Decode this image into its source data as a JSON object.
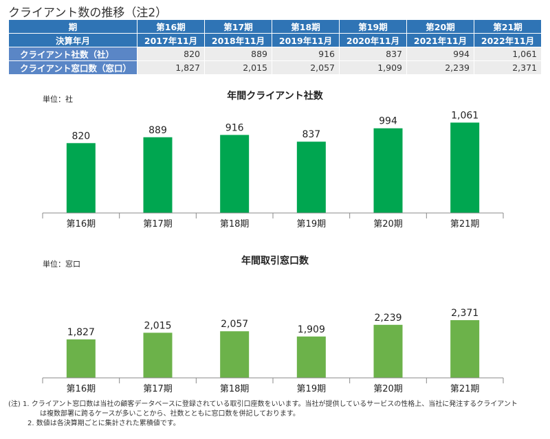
{
  "title": "クライアント数の推移（注2）",
  "table": {
    "header1": [
      "期",
      "第16期",
      "第17期",
      "第18期",
      "第19期",
      "第20期",
      "第21期"
    ],
    "header2": [
      "決算年月",
      "2017年11月",
      "2018年11月",
      "2019年11月",
      "2020年11月",
      "2021年11月",
      "2022年11月"
    ],
    "rows": [
      {
        "label": "クライアント社数（社）",
        "values": [
          "820",
          "889",
          "916",
          "837",
          "994",
          "1,061"
        ]
      },
      {
        "label": "クライアント窓口数（窓口）",
        "values": [
          "1,827",
          "2,015",
          "2,057",
          "1,909",
          "2,239",
          "2,371"
        ]
      }
    ]
  },
  "chart_data": [
    {
      "type": "bar",
      "title": "年間クライアント社数",
      "unit": "単位：社",
      "categories": [
        "第16期",
        "第17期",
        "第18期",
        "第19期",
        "第20期",
        "第21期"
      ],
      "values": [
        820,
        889,
        916,
        837,
        994,
        1061
      ],
      "labels": [
        "820",
        "889",
        "916",
        "837",
        "994",
        "1,061"
      ],
      "ylim": [
        0,
        1250
      ],
      "color": "#00a650",
      "grid": false
    },
    {
      "type": "bar",
      "title": "年間取引窓口数",
      "unit": "単位：窓口",
      "categories": [
        "第16期",
        "第17期",
        "第18期",
        "第19期",
        "第20期",
        "第21期"
      ],
      "values": [
        1827,
        2015,
        2057,
        1909,
        2239,
        2371
      ],
      "labels": [
        "1,827",
        "2,015",
        "2,057",
        "1,909",
        "2,239",
        "2,371"
      ],
      "ylim": [
        740,
        3750
      ],
      "color": "#6cb24a",
      "grid": false
    }
  ],
  "notes": {
    "prefix": "(注)",
    "n1": "1.  クライアント窓口数は当社の顧客データベースに登録されている取引口座数をいいます。当社が提供しているサービスの性格上、当社に発注するクライアント",
    "n1b": "は複数部署に跨るケースが多いことから、社数とともに窓口数を併記しております。",
    "n2": "2.  数値は各決算期ごとに集計された累積値です。"
  }
}
